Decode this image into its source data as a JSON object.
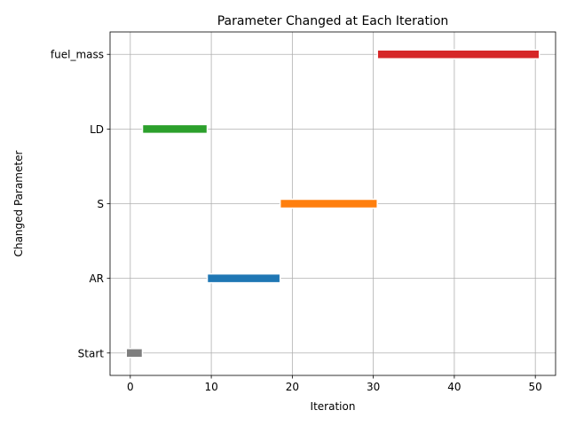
{
  "chart_data": {
    "type": "bar",
    "orientation": "horizontal",
    "title": "Parameter Changed at Each Iteration",
    "xlabel": "Iteration",
    "ylabel": "Changed Parameter",
    "categories": [
      "Start",
      "AR",
      "S",
      "LD",
      "fuel_mass"
    ],
    "x_ticks": [
      0,
      10,
      20,
      30,
      40,
      50
    ],
    "xlim": [
      -2.5,
      52.5
    ],
    "grid": true,
    "legend": "none",
    "segments": [
      {
        "parameter": "Start",
        "x_start": 0,
        "x_end": 1,
        "color": "#7f7f7f"
      },
      {
        "parameter": "LD",
        "x_start": 2,
        "x_end": 9,
        "color": "#2ca02c"
      },
      {
        "parameter": "AR",
        "x_start": 10,
        "x_end": 18,
        "color": "#1f77b4"
      },
      {
        "parameter": "S",
        "x_start": 19,
        "x_end": 30,
        "color": "#ff7f0e"
      },
      {
        "parameter": "fuel_mass",
        "x_start": 31,
        "x_end": 50,
        "color": "#d62728"
      }
    ]
  }
}
